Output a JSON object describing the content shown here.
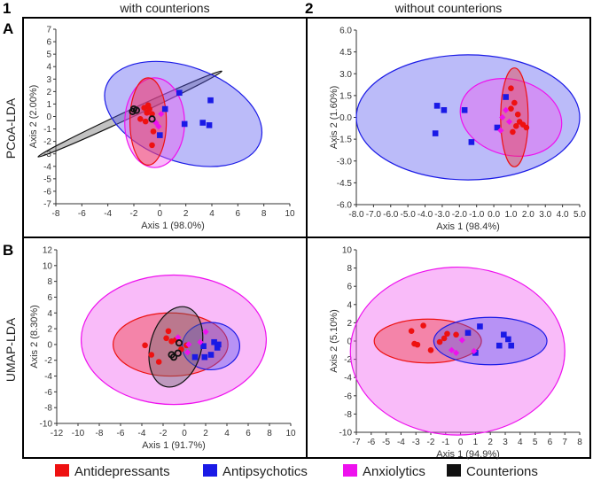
{
  "header": {
    "col1_num": "1",
    "col1_title": "with counterions",
    "col2_num": "2",
    "col2_title": "without counterions",
    "rowA_letter": "A",
    "rowA_title": "PCoA-LDA",
    "rowB_letter": "B",
    "rowB_title": "UMAP-LDA"
  },
  "legend": [
    {
      "label": "Antidepressants",
      "color": "#ee1111"
    },
    {
      "label": "Antipsychotics",
      "color": "#1a1ae6"
    },
    {
      "label": "Anxiolytics",
      "color": "#ee11ee"
    },
    {
      "label": "Counterions",
      "color": "#111111"
    }
  ],
  "chart_data": [
    {
      "id": "A1",
      "type": "scatter",
      "title": "PCoA-LDA, with counterions",
      "xlabel": "Axis 1 (98.0%)",
      "ylabel": "Axis 2 (2.00%)",
      "xlim": [
        -8,
        10
      ],
      "ylim": [
        -7,
        7
      ],
      "xtick_step": 2,
      "ytick_step": 1,
      "decimals": 0,
      "series": [
        {
          "name": "Antidepressants",
          "marker": "circle",
          "points": [
            [
              -1.2,
              0.7
            ],
            [
              -0.9,
              0.9
            ],
            [
              -1.0,
              0.3
            ],
            [
              -1.5,
              -0.2
            ],
            [
              -0.6,
              0.2
            ],
            [
              -0.5,
              -1.2
            ],
            [
              -0.6,
              -2.3
            ],
            [
              -1.1,
              -0.4
            ],
            [
              -0.8,
              0.6
            ]
          ]
        },
        {
          "name": "Antipsychotics",
          "marker": "square",
          "points": [
            [
              1.5,
              1.9
            ],
            [
              3.9,
              1.3
            ],
            [
              0.4,
              0.6
            ],
            [
              1.9,
              -0.6
            ],
            [
              3.3,
              -0.5
            ],
            [
              3.8,
              -0.7
            ],
            [
              0.0,
              -1.5
            ]
          ]
        },
        {
          "name": "Anxiolytics",
          "marker": "diamond",
          "points": [
            [
              0.1,
              0.2
            ],
            [
              -0.3,
              -0.5
            ],
            [
              -0.1,
              -0.8
            ]
          ]
        },
        {
          "name": "Counterions",
          "marker": "ring",
          "points": [
            [
              -2.0,
              0.6
            ],
            [
              -1.8,
              0.5
            ],
            [
              -2.1,
              0.4
            ],
            [
              -0.6,
              -0.2
            ]
          ]
        }
      ],
      "ellipses": [
        {
          "series": "Counterions",
          "cx": -2.3,
          "cy": 0.2,
          "rx": 7.8,
          "ry": 0.3,
          "angle": -25
        },
        {
          "series": "Antipsychotics",
          "cx": 1.8,
          "cy": 0.2,
          "rx": 6.3,
          "ry": 3.8,
          "angle": 20
        },
        {
          "series": "Anxiolytics",
          "cx": -0.4,
          "cy": -0.5,
          "rx": 2.3,
          "ry": 3.6,
          "angle": 0
        },
        {
          "series": "Antidepressants",
          "cx": -0.9,
          "cy": -0.4,
          "rx": 1.4,
          "ry": 3.5,
          "angle": 0
        }
      ]
    },
    {
      "id": "A2",
      "type": "scatter",
      "title": "PCoA-LDA, without counterions",
      "xlabel": "Axis 1 (98.4%)",
      "ylabel": "Axis 2 (1.60%)",
      "xlim": [
        -8,
        5
      ],
      "ylim": [
        -6,
        6
      ],
      "xtick_step": 1,
      "ytick_step": 1.5,
      "decimals": 1,
      "series": [
        {
          "name": "Antidepressants",
          "marker": "circle",
          "points": [
            [
              1.0,
              2.0
            ],
            [
              1.2,
              1.0
            ],
            [
              1.4,
              0.2
            ],
            [
              1.5,
              -0.3
            ],
            [
              1.3,
              -0.6
            ],
            [
              1.7,
              -0.5
            ],
            [
              1.9,
              -0.7
            ],
            [
              1.1,
              -1.0
            ],
            [
              1.0,
              0.6
            ]
          ]
        },
        {
          "name": "Antipsychotics",
          "marker": "square",
          "points": [
            [
              -3.3,
              0.8
            ],
            [
              -2.9,
              0.5
            ],
            [
              -3.4,
              -1.1
            ],
            [
              -1.7,
              0.5
            ],
            [
              -1.3,
              -1.7
            ],
            [
              0.2,
              -0.7
            ],
            [
              0.7,
              1.4
            ]
          ]
        },
        {
          "name": "Anxiolytics",
          "marker": "diamond",
          "points": [
            [
              0.5,
              0.0
            ],
            [
              0.7,
              0.5
            ],
            [
              0.9,
              -0.3
            ],
            [
              0.4,
              -0.9
            ]
          ]
        }
      ],
      "ellipses": [
        {
          "series": "Antipsychotics",
          "cx": -1.5,
          "cy": 0.0,
          "rx": 6.5,
          "ry": 4.3,
          "angle": 0
        },
        {
          "series": "Anxiolytics",
          "cx": 1.0,
          "cy": 0.0,
          "rx": 3.0,
          "ry": 2.6,
          "angle": 15
        },
        {
          "series": "Antidepressants",
          "cx": 1.2,
          "cy": 0.0,
          "rx": 0.8,
          "ry": 3.4,
          "angle": 0
        }
      ]
    },
    {
      "id": "B1",
      "type": "scatter",
      "title": "UMAP-LDA, with counterions",
      "xlabel": "Axis 1 (91.7%)",
      "ylabel": "Axis 2 (8.30%)",
      "xlim": [
        -12,
        10
      ],
      "ylim": [
        -10,
        12
      ],
      "xtick_step": 2,
      "ytick_step": 2,
      "decimals": 0,
      "series": [
        {
          "name": "Antidepressants",
          "marker": "circle",
          "points": [
            [
              -3.7,
              -0.1
            ],
            [
              -3.1,
              -1.3
            ],
            [
              -2.4,
              -2.2
            ],
            [
              -1.7,
              0.8
            ],
            [
              -1.5,
              1.7
            ],
            [
              -1.2,
              0.4
            ],
            [
              -0.8,
              0.6
            ],
            [
              -0.3,
              -0.6
            ],
            [
              0.2,
              -0.1
            ]
          ]
        },
        {
          "name": "Antipsychotics",
          "marker": "square",
          "points": [
            [
              1.8,
              -0.2
            ],
            [
              2.8,
              0.3
            ],
            [
              3.2,
              0.0
            ],
            [
              3.1,
              -0.4
            ],
            [
              2.5,
              -1.3
            ],
            [
              1.9,
              -1.6
            ],
            [
              1.0,
              -1.6
            ]
          ]
        },
        {
          "name": "Anxiolytics",
          "marker": "diamond",
          "points": [
            [
              2.0,
              1.6
            ],
            [
              1.5,
              0.3
            ],
            [
              0.4,
              0.0
            ],
            [
              0.3,
              -1.0
            ],
            [
              -0.6,
              0.9
            ]
          ]
        },
        {
          "name": "Counterions",
          "marker": "ring",
          "points": [
            [
              -1.2,
              -1.3
            ],
            [
              -1.0,
              -1.6
            ],
            [
              -0.6,
              -1.1
            ],
            [
              -0.5,
              0.2
            ]
          ]
        }
      ],
      "ellipses": [
        {
          "series": "Anxiolytics",
          "cx": -1.0,
          "cy": 0.6,
          "rx": 8.7,
          "ry": 8.2,
          "angle": 0
        },
        {
          "series": "Antidepressants",
          "cx": -1.3,
          "cy": 0.0,
          "rx": 5.4,
          "ry": 4.0,
          "angle": 0
        },
        {
          "series": "Antipsychotics",
          "cx": 2.5,
          "cy": -0.2,
          "rx": 2.7,
          "ry": 3.0,
          "angle": 0
        },
        {
          "series": "Counterions",
          "cx": -0.8,
          "cy": -0.3,
          "rx": 2.4,
          "ry": 5.2,
          "angle": 15
        }
      ]
    },
    {
      "id": "B2",
      "type": "scatter",
      "title": "UMAP-LDA, without counterions",
      "xlabel": "Axis 1 (94.9%)",
      "ylabel": "Axis 2 (5.10%)",
      "xlim": [
        -7,
        8
      ],
      "ylim": [
        -10,
        10
      ],
      "xtick_step": 1,
      "ytick_step": 2,
      "decimals": 0,
      "series": [
        {
          "name": "Antidepressants",
          "marker": "circle",
          "points": [
            [
              -3.3,
              1.1
            ],
            [
              -3.1,
              -0.3
            ],
            [
              -2.9,
              -0.4
            ],
            [
              -2.5,
              1.7
            ],
            [
              -2.0,
              -1.0
            ],
            [
              -1.1,
              0.3
            ],
            [
              -0.9,
              0.8
            ],
            [
              -1.4,
              -0.1
            ],
            [
              -0.3,
              0.7
            ]
          ]
        },
        {
          "name": "Antipsychotics",
          "marker": "square",
          "points": [
            [
              1.3,
              1.6
            ],
            [
              0.5,
              0.9
            ],
            [
              2.9,
              0.7
            ],
            [
              3.2,
              0.2
            ],
            [
              3.4,
              -0.5
            ],
            [
              2.6,
              -0.5
            ],
            [
              1.0,
              -1.3
            ]
          ]
        },
        {
          "name": "Anxiolytics",
          "marker": "diamond",
          "points": [
            [
              -0.6,
              -1.0
            ],
            [
              -0.3,
              -1.3
            ],
            [
              0.9,
              -1.1
            ],
            [
              0.1,
              0.1
            ]
          ]
        }
      ],
      "ellipses": [
        {
          "series": "Anxiolytics",
          "cx": -0.2,
          "cy": -1.1,
          "rx": 7.2,
          "ry": 9.2,
          "angle": 0
        },
        {
          "series": "Antidepressants",
          "cx": -2.2,
          "cy": 0.0,
          "rx": 3.6,
          "ry": 2.4,
          "angle": 0
        },
        {
          "series": "Antipsychotics",
          "cx": 2.0,
          "cy": 0.0,
          "rx": 3.8,
          "ry": 2.6,
          "angle": 0
        }
      ]
    }
  ]
}
